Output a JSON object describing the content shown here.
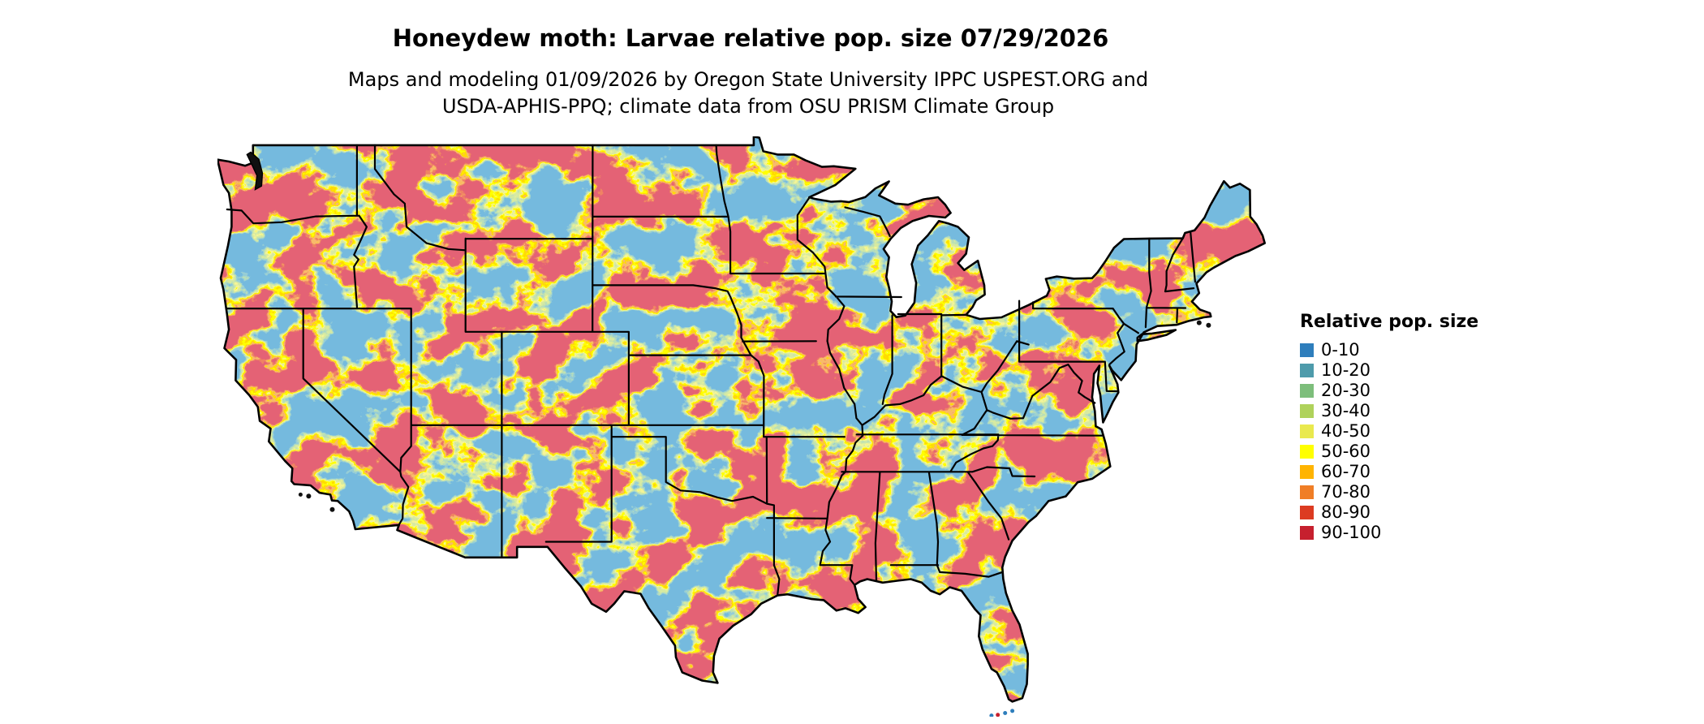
{
  "title": "Honeydew moth: Larvae relative pop. size 07/29/2026",
  "subtitle_line1": "Maps and modeling 01/09/2026 by Oregon State University IPPC USPEST.ORG and",
  "subtitle_line2": "USDA-APHIS-PPQ; climate data from OSU PRISM Climate Group",
  "legend": {
    "title": "Relative pop. size",
    "items": [
      {
        "label": "0-10",
        "color": "#2E7EBC"
      },
      {
        "label": "10-20",
        "color": "#4E9BAB"
      },
      {
        "label": "20-30",
        "color": "#7DBE7B"
      },
      {
        "label": "30-40",
        "color": "#AFD25B"
      },
      {
        "label": "40-50",
        "color": "#E9E94E"
      },
      {
        "label": "50-60",
        "color": "#FFFF00"
      },
      {
        "label": "60-70",
        "color": "#FFB400"
      },
      {
        "label": "70-80",
        "color": "#F07E26"
      },
      {
        "label": "80-90",
        "color": "#DC3B21"
      },
      {
        "label": "90-100",
        "color": "#C6202E"
      }
    ]
  }
}
